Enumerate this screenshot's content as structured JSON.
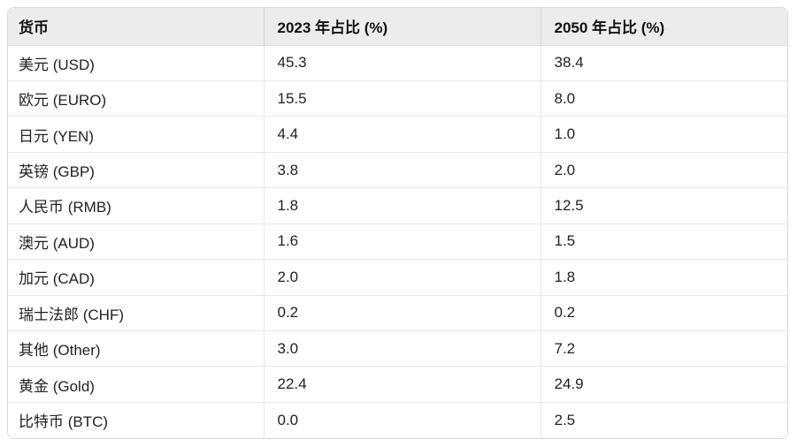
{
  "table": {
    "headers": [
      "货币",
      "2023 年占比 (%)",
      "2050 年占比 (%)"
    ],
    "rows": [
      {
        "currency": "美元 (USD)",
        "y2023": "45.3",
        "y2050": "38.4"
      },
      {
        "currency": "欧元 (EURO)",
        "y2023": "15.5",
        "y2050": "8.0"
      },
      {
        "currency": "日元 (YEN)",
        "y2023": "4.4",
        "y2050": "1.0"
      },
      {
        "currency": "英镑 (GBP)",
        "y2023": "3.8",
        "y2050": "2.0"
      },
      {
        "currency": "人民币 (RMB)",
        "y2023": "1.8",
        "y2050": "12.5"
      },
      {
        "currency": "澳元 (AUD)",
        "y2023": "1.6",
        "y2050": "1.5"
      },
      {
        "currency": "加元 (CAD)",
        "y2023": "2.0",
        "y2050": "1.8"
      },
      {
        "currency": "瑞士法郎 (CHF)",
        "y2023": "0.2",
        "y2050": "0.2"
      },
      {
        "currency": "其他 (Other)",
        "y2023": "3.0",
        "y2050": "7.2"
      },
      {
        "currency": "黄金 (Gold)",
        "y2023": "22.4",
        "y2050": "24.9"
      },
      {
        "currency": "比特币 (BTC)",
        "y2023": "0.0",
        "y2050": "2.5"
      }
    ],
    "colors": {
      "header_bg": "#ececec",
      "outer_border": "#d8d8d8",
      "row_divider": "#e7e7e7",
      "text": "#1f1f1f"
    }
  },
  "chart_data": {
    "type": "table",
    "title": "",
    "columns": [
      "货币",
      "2023 年占比 (%)",
      "2050 年占比 (%)"
    ],
    "rows": [
      [
        "美元 (USD)",
        45.3,
        38.4
      ],
      [
        "欧元 (EURO)",
        15.5,
        8.0
      ],
      [
        "日元 (YEN)",
        4.4,
        1.0
      ],
      [
        "英镑 (GBP)",
        3.8,
        2.0
      ],
      [
        "人民币 (RMB)",
        1.8,
        12.5
      ],
      [
        "澳元 (AUD)",
        1.6,
        1.5
      ],
      [
        "加元 (CAD)",
        2.0,
        1.8
      ],
      [
        "瑞士法郎 (CHF)",
        0.2,
        0.2
      ],
      [
        "其他 (Other)",
        3.0,
        7.2
      ],
      [
        "黄金 (Gold)",
        22.4,
        24.9
      ],
      [
        "比特币 (BTC)",
        0.0,
        2.5
      ]
    ]
  }
}
